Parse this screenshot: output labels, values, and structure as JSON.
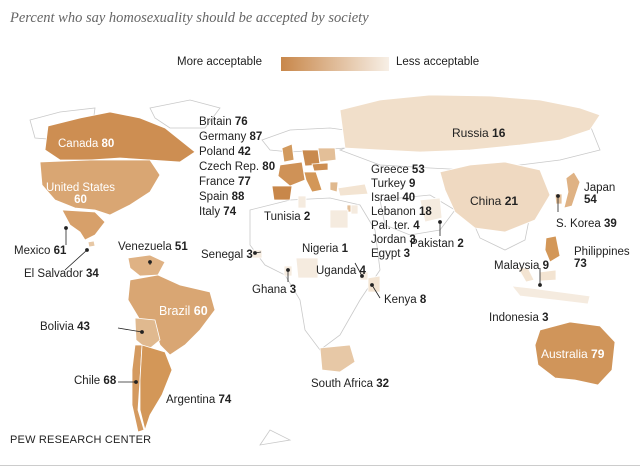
{
  "subtitle": "Percent who say homosexuality should be accepted by society",
  "legend": {
    "more": "More acceptable",
    "less": "Less acceptable",
    "gradient_from": "#c8874a",
    "gradient_to": "#f7efe6"
  },
  "footer": "PEW RESEARCH CENTER",
  "countries": [
    {
      "name": "Canada",
      "value": "80"
    },
    {
      "name": "United States",
      "value": "60"
    },
    {
      "name": "Mexico",
      "value": "61"
    },
    {
      "name": "El Salvador",
      "value": "34"
    },
    {
      "name": "Venezuela",
      "value": "51"
    },
    {
      "name": "Brazil",
      "value": "60"
    },
    {
      "name": "Bolivia",
      "value": "43"
    },
    {
      "name": "Chile",
      "value": "68"
    },
    {
      "name": "Argentina",
      "value": "74"
    },
    {
      "name": "Britain",
      "value": "76"
    },
    {
      "name": "Germany",
      "value": "87"
    },
    {
      "name": "Poland",
      "value": "42"
    },
    {
      "name": "Czech Rep.",
      "value": "80"
    },
    {
      "name": "France",
      "value": "77"
    },
    {
      "name": "Spain",
      "value": "88"
    },
    {
      "name": "Italy",
      "value": "74"
    },
    {
      "name": "Tunisia",
      "value": "2"
    },
    {
      "name": "Senegal",
      "value": "3"
    },
    {
      "name": "Nigeria",
      "value": "1"
    },
    {
      "name": "Ghana",
      "value": "3"
    },
    {
      "name": "Uganda",
      "value": "4"
    },
    {
      "name": "Kenya",
      "value": "8"
    },
    {
      "name": "South Africa",
      "value": "32"
    },
    {
      "name": "Greece",
      "value": "53"
    },
    {
      "name": "Turkey",
      "value": "9"
    },
    {
      "name": "Israel",
      "value": "40"
    },
    {
      "name": "Lebanon",
      "value": "18"
    },
    {
      "name": "Pal. ter.",
      "value": "4"
    },
    {
      "name": "Jordan",
      "value": "3"
    },
    {
      "name": "Egypt",
      "value": "3"
    },
    {
      "name": "Russia",
      "value": "16"
    },
    {
      "name": "Pakistan",
      "value": "2"
    },
    {
      "name": "China",
      "value": "21"
    },
    {
      "name": "Japan",
      "value": "54"
    },
    {
      "name": "S. Korea",
      "value": "39"
    },
    {
      "name": "Philippines",
      "value": "73"
    },
    {
      "name": "Malaysia",
      "value": "9"
    },
    {
      "name": "Indonesia",
      "value": "3"
    },
    {
      "name": "Australia",
      "value": "79"
    }
  ]
}
